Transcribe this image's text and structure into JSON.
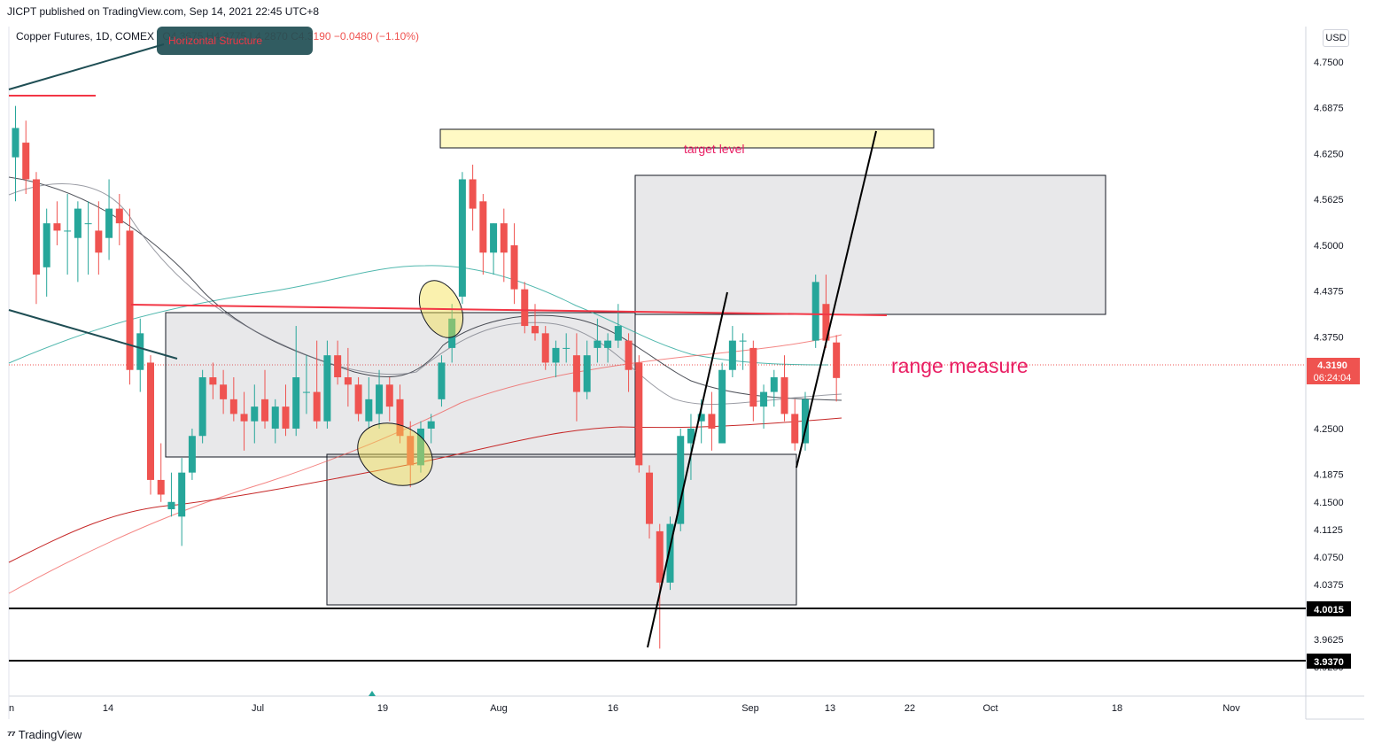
{
  "header": {
    "published": "JICPT published on TradingView.com, Sep 14, 2021 22:45 UTC+8",
    "symbol": "Copper Futures, 1D, COMEX",
    "ohlc": "O4.3675  H4.3775  L4.2870  C4.3190  −0.0480 (−1.10%)",
    "callout": "Horizontal Structure"
  },
  "currency": "USD",
  "footer": {
    "brand": "TradingView"
  },
  "colors": {
    "up": "#26a69a",
    "down": "#ef5350",
    "line_red": "#f23645",
    "annotation": "#e91e63"
  },
  "annotations": {
    "target": "target level",
    "range": "range measure"
  },
  "price_badges": {
    "last": "4.3190",
    "countdown": "06:24:04",
    "level_a": "4.0015",
    "level_b": "3.9370"
  },
  "chart_data": {
    "type": "candlestick",
    "title": "Copper Futures, 1D, COMEX",
    "ylim": [
      3.9,
      4.79
    ],
    "y_ticks": [
      "4.7500",
      "4.6875",
      "4.6250",
      "4.5625",
      "4.5000",
      "4.4375",
      "4.3750",
      "4.2500",
      "4.1875",
      "4.1500",
      "4.1125",
      "4.0750",
      "4.0375",
      "3.9625",
      "3.9250"
    ],
    "x_ticks": [
      "n",
      "14",
      "Jul",
      "19",
      "Aug",
      "16",
      "Sep",
      "13",
      "22",
      "Oct",
      "18",
      "Nov"
    ],
    "candles": [
      {
        "o": 4.62,
        "h": 4.69,
        "l": 4.56,
        "c": 4.66
      },
      {
        "o": 4.64,
        "h": 4.67,
        "l": 4.57,
        "c": 4.59
      },
      {
        "o": 4.59,
        "h": 4.6,
        "l": 4.42,
        "c": 4.46
      },
      {
        "o": 4.47,
        "h": 4.55,
        "l": 4.43,
        "c": 4.53
      },
      {
        "o": 4.53,
        "h": 4.56,
        "l": 4.5,
        "c": 4.52
      },
      {
        "o": 4.52,
        "h": 4.57,
        "l": 4.46,
        "c": 4.52
      },
      {
        "o": 4.51,
        "h": 4.56,
        "l": 4.45,
        "c": 4.55
      },
      {
        "o": 4.53,
        "h": 4.56,
        "l": 4.46,
        "c": 4.53
      },
      {
        "o": 4.52,
        "h": 4.56,
        "l": 4.46,
        "c": 4.49
      },
      {
        "o": 4.51,
        "h": 4.59,
        "l": 4.48,
        "c": 4.55
      },
      {
        "o": 4.55,
        "h": 4.57,
        "l": 4.5,
        "c": 4.53
      },
      {
        "o": 4.52,
        "h": 4.55,
        "l": 4.31,
        "c": 4.33
      },
      {
        "o": 4.33,
        "h": 4.4,
        "l": 4.3,
        "c": 4.38
      },
      {
        "o": 4.34,
        "h": 4.35,
        "l": 4.16,
        "c": 4.18
      },
      {
        "o": 4.18,
        "h": 4.23,
        "l": 4.15,
        "c": 4.16
      },
      {
        "o": 4.14,
        "h": 4.19,
        "l": 4.13,
        "c": 4.15
      },
      {
        "o": 4.13,
        "h": 4.21,
        "l": 4.09,
        "c": 4.19
      },
      {
        "o": 4.19,
        "h": 4.25,
        "l": 4.18,
        "c": 4.24
      },
      {
        "o": 4.24,
        "h": 4.33,
        "l": 4.23,
        "c": 4.32
      },
      {
        "o": 4.32,
        "h": 4.34,
        "l": 4.29,
        "c": 4.31
      },
      {
        "o": 4.31,
        "h": 4.33,
        "l": 4.27,
        "c": 4.29
      },
      {
        "o": 4.29,
        "h": 4.32,
        "l": 4.26,
        "c": 4.27
      },
      {
        "o": 4.27,
        "h": 4.3,
        "l": 4.22,
        "c": 4.26
      },
      {
        "o": 4.26,
        "h": 4.31,
        "l": 4.23,
        "c": 4.28
      },
      {
        "o": 4.29,
        "h": 4.33,
        "l": 4.25,
        "c": 4.26
      },
      {
        "o": 4.25,
        "h": 4.29,
        "l": 4.23,
        "c": 4.28
      },
      {
        "o": 4.28,
        "h": 4.31,
        "l": 4.24,
        "c": 4.25
      },
      {
        "o": 4.25,
        "h": 4.39,
        "l": 4.24,
        "c": 4.32
      },
      {
        "o": 4.3,
        "h": 4.35,
        "l": 4.27,
        "c": 4.3
      },
      {
        "o": 4.3,
        "h": 4.37,
        "l": 4.25,
        "c": 4.26
      },
      {
        "o": 4.26,
        "h": 4.37,
        "l": 4.25,
        "c": 4.35
      },
      {
        "o": 4.35,
        "h": 4.37,
        "l": 4.31,
        "c": 4.32
      },
      {
        "o": 4.32,
        "h": 4.36,
        "l": 4.28,
        "c": 4.31
      },
      {
        "o": 4.31,
        "h": 4.32,
        "l": 4.26,
        "c": 4.27
      },
      {
        "o": 4.26,
        "h": 4.32,
        "l": 4.25,
        "c": 4.29
      },
      {
        "o": 4.27,
        "h": 4.33,
        "l": 4.25,
        "c": 4.31
      },
      {
        "o": 4.31,
        "h": 4.32,
        "l": 4.26,
        "c": 4.28
      },
      {
        "o": 4.29,
        "h": 4.31,
        "l": 4.23,
        "c": 4.24
      },
      {
        "o": 4.24,
        "h": 4.26,
        "l": 4.17,
        "c": 4.2
      },
      {
        "o": 4.2,
        "h": 4.26,
        "l": 4.19,
        "c": 4.25
      },
      {
        "o": 4.25,
        "h": 4.27,
        "l": 4.23,
        "c": 4.26
      },
      {
        "o": 4.29,
        "h": 4.35,
        "l": 4.28,
        "c": 4.34
      },
      {
        "o": 4.36,
        "h": 4.42,
        "l": 4.34,
        "c": 4.4
      },
      {
        "o": 4.43,
        "h": 4.6,
        "l": 4.42,
        "c": 4.59
      },
      {
        "o": 4.59,
        "h": 4.61,
        "l": 4.52,
        "c": 4.55
      },
      {
        "o": 4.56,
        "h": 4.57,
        "l": 4.46,
        "c": 4.49
      },
      {
        "o": 4.49,
        "h": 4.53,
        "l": 4.46,
        "c": 4.53
      },
      {
        "o": 4.53,
        "h": 4.55,
        "l": 4.45,
        "c": 4.49
      },
      {
        "o": 4.5,
        "h": 4.53,
        "l": 4.42,
        "c": 4.44
      },
      {
        "o": 4.44,
        "h": 4.45,
        "l": 4.38,
        "c": 4.39
      },
      {
        "o": 4.39,
        "h": 4.42,
        "l": 4.37,
        "c": 4.38
      },
      {
        "o": 4.38,
        "h": 4.39,
        "l": 4.33,
        "c": 4.34
      },
      {
        "o": 4.34,
        "h": 4.37,
        "l": 4.32,
        "c": 4.36
      },
      {
        "o": 4.36,
        "h": 4.38,
        "l": 4.34,
        "c": 4.36
      },
      {
        "o": 4.35,
        "h": 4.38,
        "l": 4.26,
        "c": 4.3
      },
      {
        "o": 4.3,
        "h": 4.37,
        "l": 4.29,
        "c": 4.35
      },
      {
        "o": 4.36,
        "h": 4.4,
        "l": 4.34,
        "c": 4.37
      },
      {
        "o": 4.36,
        "h": 4.38,
        "l": 4.34,
        "c": 4.37
      },
      {
        "o": 4.37,
        "h": 4.42,
        "l": 4.36,
        "c": 4.39
      },
      {
        "o": 4.37,
        "h": 4.38,
        "l": 4.3,
        "c": 4.33
      },
      {
        "o": 4.34,
        "h": 4.35,
        "l": 4.19,
        "c": 4.2
      },
      {
        "o": 4.19,
        "h": 4.2,
        "l": 4.1,
        "c": 4.12
      },
      {
        "o": 4.11,
        "h": 4.12,
        "l": 3.95,
        "c": 4.04
      },
      {
        "o": 4.04,
        "h": 4.13,
        "l": 4.03,
        "c": 4.12
      },
      {
        "o": 4.12,
        "h": 4.25,
        "l": 4.11,
        "c": 4.24
      },
      {
        "o": 4.23,
        "h": 4.27,
        "l": 4.18,
        "c": 4.25
      },
      {
        "o": 4.26,
        "h": 4.29,
        "l": 4.23,
        "c": 4.27
      },
      {
        "o": 4.27,
        "h": 4.3,
        "l": 4.22,
        "c": 4.25
      },
      {
        "o": 4.23,
        "h": 4.34,
        "l": 4.23,
        "c": 4.33
      },
      {
        "o": 4.33,
        "h": 4.39,
        "l": 4.32,
        "c": 4.37
      },
      {
        "o": 4.37,
        "h": 4.38,
        "l": 4.33,
        "c": 4.37
      },
      {
        "o": 4.36,
        "h": 4.37,
        "l": 4.26,
        "c": 4.28
      },
      {
        "o": 4.28,
        "h": 4.31,
        "l": 4.25,
        "c": 4.3
      },
      {
        "o": 4.3,
        "h": 4.33,
        "l": 4.28,
        "c": 4.32
      },
      {
        "o": 4.32,
        "h": 4.35,
        "l": 4.26,
        "c": 4.27
      },
      {
        "o": 4.27,
        "h": 4.29,
        "l": 4.22,
        "c": 4.23
      },
      {
        "o": 4.23,
        "h": 4.3,
        "l": 4.22,
        "c": 4.29
      },
      {
        "o": 4.37,
        "h": 4.46,
        "l": 4.36,
        "c": 4.45
      },
      {
        "o": 4.42,
        "h": 4.46,
        "l": 4.36,
        "c": 4.37
      },
      {
        "o": 4.3675,
        "h": 4.3775,
        "l": 4.287,
        "c": 4.319
      }
    ],
    "horizontal_levels": [
      4.0015,
      3.937
    ]
  }
}
